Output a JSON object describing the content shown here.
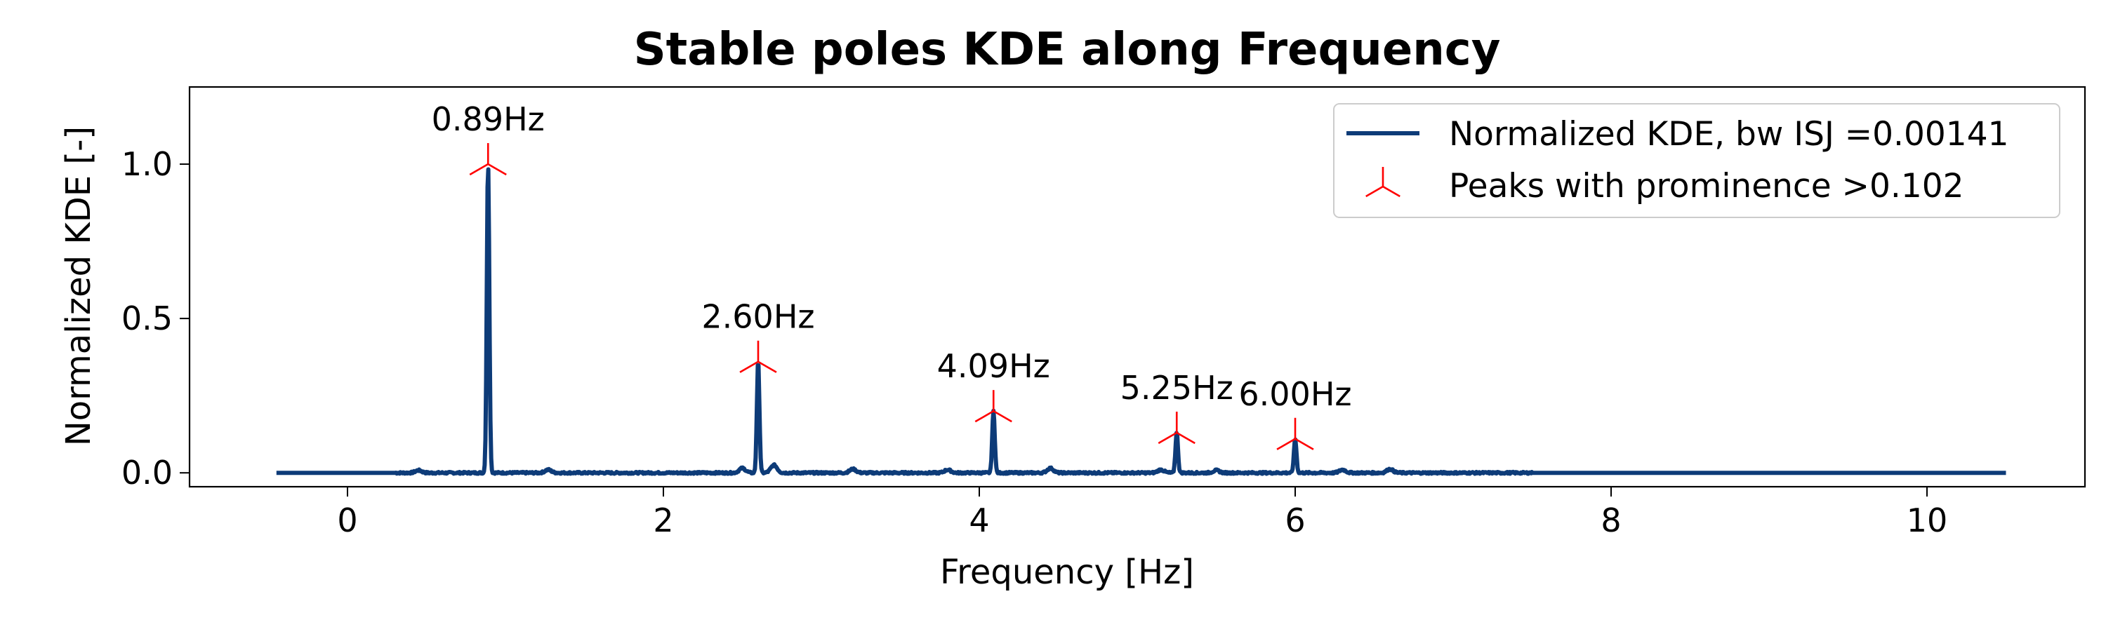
{
  "chart_data": {
    "type": "line",
    "title": "Stable poles KDE along Frequency",
    "xlabel": "Frequency [Hz]",
    "ylabel": "Normalized KDE [-]",
    "xlim": [
      -1.0,
      11.0
    ],
    "ylim": [
      -0.045,
      1.25
    ],
    "x_ticks": [
      0,
      2,
      4,
      6,
      8,
      10
    ],
    "x_tick_labels": [
      "0",
      "2",
      "4",
      "6",
      "8",
      "10"
    ],
    "y_ticks": [
      0.0,
      0.5,
      1.0
    ],
    "y_tick_labels": [
      "0.0",
      "0.5",
      "1.0"
    ],
    "grid": false,
    "legend_position": "top-right",
    "colors": {
      "kde_line": "#0d3b78",
      "peak_marker": "#ff0000"
    },
    "series": [
      {
        "name": "Normalized KDE, bw ISJ =0.00141",
        "x_range": [
          -0.45,
          10.5
        ],
        "baseline": 0.0,
        "peaks": [
          {
            "x": 0.89,
            "y": 1.0
          },
          {
            "x": 2.6,
            "y": 0.36
          },
          {
            "x": 4.09,
            "y": 0.2
          },
          {
            "x": 5.25,
            "y": 0.13
          },
          {
            "x": 6.0,
            "y": 0.11
          }
        ],
        "minor_bumps": [
          {
            "x": 0.45,
            "y": 0.008
          },
          {
            "x": 1.27,
            "y": 0.01
          },
          {
            "x": 2.5,
            "y": 0.015
          },
          {
            "x": 2.7,
            "y": 0.025
          },
          {
            "x": 3.2,
            "y": 0.012
          },
          {
            "x": 3.8,
            "y": 0.01
          },
          {
            "x": 4.45,
            "y": 0.015
          },
          {
            "x": 5.15,
            "y": 0.01
          },
          {
            "x": 5.5,
            "y": 0.008
          },
          {
            "x": 6.3,
            "y": 0.01
          },
          {
            "x": 6.6,
            "y": 0.012
          }
        ]
      },
      {
        "name": "Peaks with prominence >0.102",
        "marker": "tri_down",
        "points": [
          {
            "x": 0.89,
            "y": 1.0,
            "label": "0.89Hz"
          },
          {
            "x": 2.6,
            "y": 0.36,
            "label": "2.60Hz"
          },
          {
            "x": 4.09,
            "y": 0.2,
            "label": "4.09Hz"
          },
          {
            "x": 5.25,
            "y": 0.13,
            "label": "5.25Hz"
          },
          {
            "x": 6.0,
            "y": 0.11,
            "label": "6.00Hz"
          }
        ]
      }
    ]
  }
}
